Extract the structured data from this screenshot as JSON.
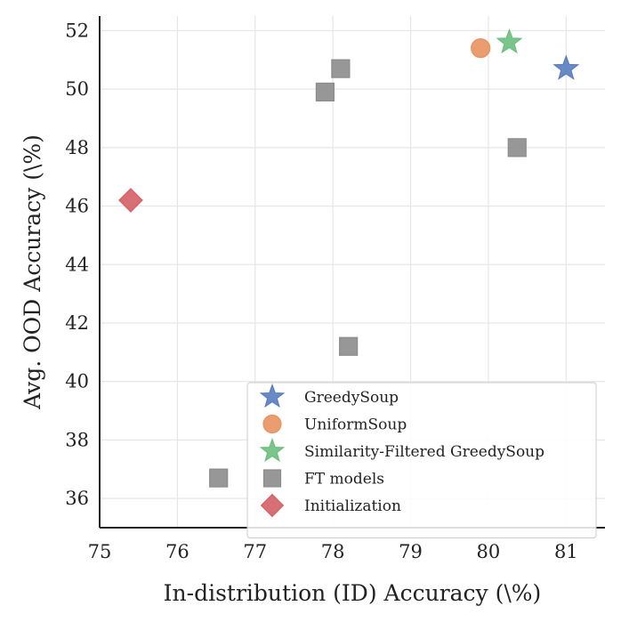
{
  "chart_data": {
    "type": "scatter",
    "title": "",
    "xlabel": "In-distribution (ID) Accuracy (\\%)",
    "ylabel": "Avg. OOD Accuracy (\\%)",
    "xlim": [
      75,
      81.5
    ],
    "ylim": [
      35,
      52.5
    ],
    "xticks": [
      75,
      76,
      77,
      78,
      79,
      80,
      81
    ],
    "yticks": [
      36,
      38,
      40,
      42,
      44,
      46,
      48,
      50,
      52
    ],
    "grid": true,
    "legend_position": "lower-right",
    "series": [
      {
        "name": "GreedySoup",
        "marker": "star",
        "color": "#5a7dbf",
        "points": [
          {
            "x": 81.0,
            "y": 50.7
          }
        ]
      },
      {
        "name": "UniformSoup",
        "marker": "circle",
        "color": "#e8925f",
        "points": [
          {
            "x": 79.9,
            "y": 51.4
          }
        ]
      },
      {
        "name": "Similarity-Filtered GreedySoup",
        "marker": "star",
        "color": "#6cbf7e",
        "points": [
          {
            "x": 80.27,
            "y": 51.6
          }
        ]
      },
      {
        "name": "FT models",
        "marker": "square",
        "color": "#8c8c8c",
        "points": [
          {
            "x": 78.1,
            "y": 50.7
          },
          {
            "x": 77.9,
            "y": 49.9
          },
          {
            "x": 80.37,
            "y": 48.0
          },
          {
            "x": 78.2,
            "y": 41.2
          },
          {
            "x": 76.53,
            "y": 36.7
          }
        ]
      },
      {
        "name": "Initialization",
        "marker": "diamond",
        "color": "#d45f66",
        "points": [
          {
            "x": 75.4,
            "y": 46.2
          }
        ]
      }
    ]
  }
}
